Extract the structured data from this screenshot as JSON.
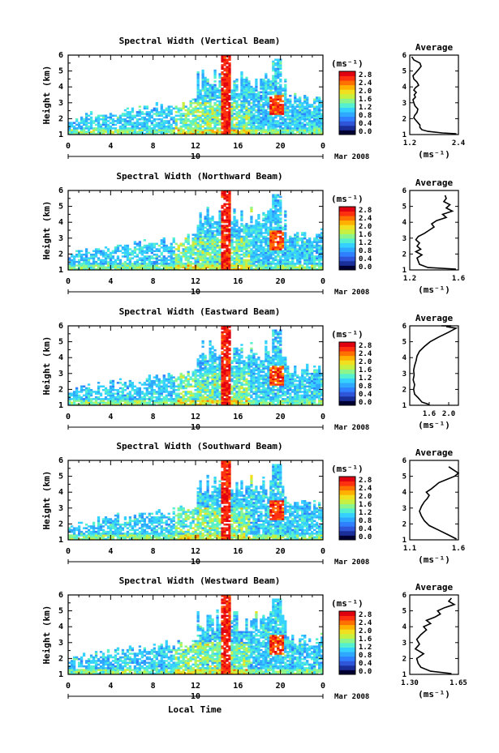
{
  "figure": {
    "xlabel": "Local Time",
    "x_ticks": [
      "0",
      "4",
      "8",
      "12",
      "16",
      "20",
      "0"
    ],
    "date_tick": "10",
    "date_label": "Mar 2008"
  },
  "colorbar": {
    "unit": "(ms⁻¹)",
    "scale": [
      "#000033",
      "#1a2f99",
      "#2f56d9",
      "#2f7fff",
      "#2fa8ff",
      "#36d2ff",
      "#54f0d0",
      "#8cf58c",
      "#c8f040",
      "#f0e020",
      "#ffb000",
      "#ff7000",
      "#ff3010",
      "#e00010"
    ]
  },
  "chart_data": [
    {
      "type": "heatmap",
      "title": "Spectral Width (Vertical Beam)",
      "xlabel": "Local Time",
      "ylabel": "Height (km)",
      "xlim": [
        0,
        24
      ],
      "ylim": [
        1,
        6
      ],
      "x_ticks": [
        "0",
        "4",
        "8",
        "12",
        "16",
        "20",
        "0"
      ],
      "y_ticks": [
        "1",
        "2",
        "3",
        "4",
        "5",
        "6"
      ],
      "colorbar_ticks": [
        "2.8",
        "2.4",
        "2.0",
        "1.6",
        "1.2",
        "0.8",
        "0.4",
        "0.0"
      ],
      "colorbar_range": [
        0,
        2.8
      ],
      "seed": 11
    },
    {
      "type": "line",
      "title": "Average",
      "xlabel": "(ms⁻¹)",
      "ylabel": "",
      "xlim": [
        1.2,
        2.4
      ],
      "ylim": [
        1,
        6
      ],
      "x_ticks": [
        "1.2",
        "2.4"
      ],
      "y_ticks": [
        "1",
        "2",
        "3",
        "4",
        "5",
        "6"
      ],
      "x": [
        2.35,
        2.0,
        1.65,
        1.5,
        1.45,
        1.45,
        1.4,
        1.35,
        1.3,
        1.32,
        1.38,
        1.4,
        1.33,
        1.3,
        1.28,
        1.34,
        1.31,
        1.36,
        1.3,
        1.34,
        1.42,
        1.38,
        1.3,
        1.28,
        1.35,
        1.42,
        1.48,
        1.45,
        1.3,
        1.25
      ],
      "y": [
        1.05,
        1.1,
        1.2,
        1.3,
        1.45,
        1.6,
        1.75,
        1.9,
        2.05,
        2.2,
        2.4,
        2.6,
        2.8,
        3.0,
        3.2,
        3.35,
        3.5,
        3.65,
        3.8,
        3.95,
        4.1,
        4.3,
        4.5,
        4.7,
        4.9,
        5.1,
        5.3,
        5.5,
        5.7,
        5.9
      ]
    },
    {
      "type": "heatmap",
      "title": "Spectral Width (Northward Beam)",
      "xlabel": "Local Time",
      "ylabel": "Height (km)",
      "xlim": [
        0,
        24
      ],
      "ylim": [
        1,
        6
      ],
      "x_ticks": [
        "0",
        "4",
        "8",
        "12",
        "16",
        "20",
        "0"
      ],
      "y_ticks": [
        "1",
        "2",
        "3",
        "4",
        "5",
        "6"
      ],
      "colorbar_ticks": [
        "2.8",
        "2.4",
        "2.0",
        "1.6",
        "1.2",
        "0.8",
        "0.4",
        "0.0"
      ],
      "colorbar_range": [
        0,
        2.8
      ],
      "seed": 23
    },
    {
      "type": "line",
      "title": "Average",
      "xlabel": "(ms⁻¹)",
      "ylabel": "",
      "xlim": [
        1.2,
        1.6
      ],
      "ylim": [
        1,
        6
      ],
      "x_ticks": [
        "1.2",
        "1.6"
      ],
      "y_ticks": [
        "1",
        "2",
        "3",
        "4",
        "5",
        "6"
      ],
      "x": [
        1.58,
        1.35,
        1.28,
        1.27,
        1.26,
        1.3,
        1.25,
        1.29,
        1.26,
        1.28,
        1.25,
        1.27,
        1.32,
        1.36,
        1.4,
        1.38,
        1.42,
        1.5,
        1.47,
        1.55,
        1.5,
        1.53,
        1.48,
        1.5,
        1.49
      ],
      "y": [
        1.05,
        1.15,
        1.35,
        1.55,
        1.75,
        1.95,
        2.15,
        2.3,
        2.5,
        2.7,
        2.9,
        3.1,
        3.3,
        3.5,
        3.7,
        3.9,
        4.1,
        4.3,
        4.5,
        4.7,
        4.9,
        5.1,
        5.3,
        5.5,
        5.7
      ]
    },
    {
      "type": "heatmap",
      "title": "Spectral Width (Eastward Beam)",
      "xlabel": "Local Time",
      "ylabel": "Height (km)",
      "xlim": [
        0,
        24
      ],
      "ylim": [
        1,
        6
      ],
      "x_ticks": [
        "0",
        "4",
        "8",
        "12",
        "16",
        "20",
        "0"
      ],
      "y_ticks": [
        "1",
        "2",
        "3",
        "4",
        "5",
        "6"
      ],
      "colorbar_ticks": [
        "2.8",
        "2.4",
        "2.0",
        "1.6",
        "1.2",
        "0.8",
        "0.4",
        "0.0"
      ],
      "colorbar_range": [
        0,
        2.8
      ],
      "seed": 37
    },
    {
      "type": "line",
      "title": "Average",
      "xlabel": "(ms⁻¹)",
      "ylabel": "",
      "xlim": [
        1.2,
        2.2
      ],
      "ylim": [
        1,
        6
      ],
      "x_ticks": [
        "1.6",
        "2.0"
      ],
      "y_ticks": [
        "1",
        "2",
        "3",
        "4",
        "5",
        "6"
      ],
      "x": [
        1.6,
        1.45,
        1.38,
        1.3,
        1.28,
        1.3,
        1.27,
        1.29,
        1.28,
        1.3,
        1.33,
        1.35,
        1.4,
        1.5,
        1.62,
        1.8,
        2.0,
        2.15,
        1.95,
        2.05,
        1.85
      ],
      "y": [
        1.05,
        1.2,
        1.45,
        1.7,
        2.0,
        2.3,
        2.6,
        2.9,
        3.2,
        3.5,
        3.8,
        4.1,
        4.4,
        4.7,
        5.0,
        5.3,
        5.6,
        5.85,
        5.95,
        6.0,
        6.0
      ]
    },
    {
      "type": "heatmap",
      "title": "Spectral Width (Southward Beam)",
      "xlabel": "Local Time",
      "ylabel": "Height (km)",
      "xlim": [
        0,
        24
      ],
      "ylim": [
        1,
        6
      ],
      "x_ticks": [
        "0",
        "4",
        "8",
        "12",
        "16",
        "20",
        "0"
      ],
      "y_ticks": [
        "1",
        "2",
        "3",
        "4",
        "5",
        "6"
      ],
      "colorbar_ticks": [
        "2.8",
        "2.4",
        "2.0",
        "1.6",
        "1.2",
        "0.8",
        "0.4",
        "0.0"
      ],
      "colorbar_range": [
        0,
        2.8
      ],
      "seed": 51
    },
    {
      "type": "line",
      "title": "Average",
      "xlabel": "(ms⁻¹)",
      "ylabel": "",
      "xlim": [
        1.1,
        1.6
      ],
      "ylim": [
        1,
        6
      ],
      "x_ticks": [
        "1.1",
        "1.6"
      ],
      "y_ticks": [
        "1",
        "2",
        "3",
        "4",
        "5",
        "6"
      ],
      "x": [
        1.58,
        1.5,
        1.4,
        1.3,
        1.25,
        1.22,
        1.2,
        1.22,
        1.25,
        1.28,
        1.3,
        1.27,
        1.32,
        1.36,
        1.4,
        1.48,
        1.56,
        1.6,
        1.55,
        1.5
      ],
      "y": [
        1.05,
        1.3,
        1.6,
        1.9,
        2.2,
        2.5,
        2.8,
        3.1,
        3.4,
        3.6,
        3.8,
        4.0,
        4.2,
        4.4,
        4.6,
        4.8,
        5.0,
        5.2,
        5.4,
        5.6
      ]
    },
    {
      "type": "heatmap",
      "title": "Spectral Width (Westward Beam)",
      "xlabel": "Local Time",
      "ylabel": "Height (km)",
      "xlim": [
        0,
        24
      ],
      "ylim": [
        1,
        6
      ],
      "x_ticks": [
        "0",
        "4",
        "8",
        "12",
        "16",
        "20",
        "0"
      ],
      "y_ticks": [
        "1",
        "2",
        "3",
        "4",
        "5",
        "6"
      ],
      "colorbar_ticks": [
        "2.8",
        "2.4",
        "2.0",
        "1.6",
        "1.2",
        "0.8",
        "0.4",
        "0.0"
      ],
      "colorbar_range": [
        0,
        2.8
      ],
      "seed": 67
    },
    {
      "type": "line",
      "title": "Average",
      "xlabel": "(ms⁻¹)",
      "ylabel": "",
      "xlim": [
        1.3,
        1.65
      ],
      "ylim": [
        1,
        6
      ],
      "x_ticks": [
        "1.30",
        "1.65"
      ],
      "y_ticks": [
        "1",
        "2",
        "3",
        "4",
        "5",
        "6"
      ],
      "x": [
        1.6,
        1.45,
        1.38,
        1.36,
        1.35,
        1.4,
        1.34,
        1.37,
        1.35,
        1.38,
        1.42,
        1.4,
        1.45,
        1.42,
        1.48,
        1.52,
        1.5,
        1.55,
        1.62,
        1.58,
        1.6
      ],
      "y": [
        1.05,
        1.2,
        1.45,
        1.7,
        2.0,
        2.3,
        2.6,
        2.9,
        3.2,
        3.5,
        3.8,
        4.0,
        4.2,
        4.4,
        4.6,
        4.8,
        5.0,
        5.2,
        5.4,
        5.6,
        5.8
      ]
    }
  ]
}
